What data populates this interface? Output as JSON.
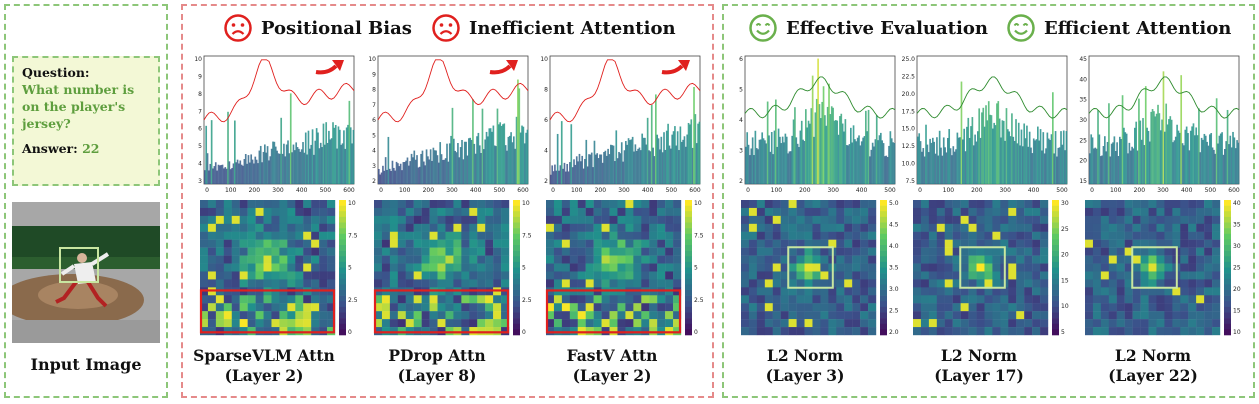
{
  "left": {
    "question_label": "Question:",
    "question_text": "What number is on the player's jersey?",
    "answer_label": "Answer:",
    "answer_value": "22",
    "image_caption": "Input Image"
  },
  "headers": [
    {
      "label": "Positional Bias",
      "icon": "sad-face-icon",
      "color": "#e0201e"
    },
    {
      "label": "Inefficient Attention",
      "icon": "sad-face-icon",
      "color": "#e0201e"
    },
    {
      "label": "Effective Evaluation",
      "icon": "happy-face-icon",
      "color": "#6ab04c"
    },
    {
      "label": "Efficient Attention",
      "icon": "happy-face-icon",
      "color": "#6ab04c"
    }
  ],
  "panels": [
    {
      "title": "SparseVLM Attn",
      "subtitle": "(Layer 2)",
      "y_ticks": [
        "3",
        "4",
        "5",
        "6",
        "7",
        "8",
        "9",
        "10"
      ],
      "x_ticks": [
        "0",
        "100",
        "200",
        "300",
        "400",
        "500",
        "600"
      ],
      "cb_ticks": [
        "0",
        "2.5",
        "5",
        "7.5",
        "10"
      ],
      "line_color": "#e0201e",
      "red_arrow": true,
      "highlight": "bottom"
    },
    {
      "title": "PDrop Attn",
      "subtitle": "(Layer 8)",
      "y_ticks": [
        "2",
        "3",
        "4",
        "5",
        "6",
        "7",
        "8",
        "9",
        "10"
      ],
      "x_ticks": [
        "0",
        "100",
        "200",
        "300",
        "400",
        "500",
        "600"
      ],
      "cb_ticks": [
        "0",
        "2.5",
        "5",
        "7.5",
        "10"
      ],
      "line_color": "#e0201e",
      "red_arrow": true,
      "highlight": "bottom"
    },
    {
      "title": "FastV Attn",
      "subtitle": "(Layer 2)",
      "y_ticks": [
        "2",
        "4",
        "6",
        "8",
        "10"
      ],
      "x_ticks": [
        "0",
        "100",
        "200",
        "300",
        "400",
        "500",
        "600"
      ],
      "cb_ticks": [
        "0",
        "2.5",
        "5",
        "7.5",
        "10"
      ],
      "line_color": "#e0201e",
      "red_arrow": true,
      "highlight": "bottom"
    },
    {
      "title": "L2 Norm",
      "subtitle": "(Layer 3)",
      "y_ticks": [
        "2",
        "3",
        "4",
        "5",
        "6"
      ],
      "x_ticks": [
        "0",
        "100",
        "200",
        "300",
        "400",
        "500"
      ],
      "cb_ticks": [
        "2.0",
        "2.5",
        "3.0",
        "3.5",
        "4.0",
        "4.5",
        "5.0"
      ],
      "line_color": "#2e8b2e",
      "red_arrow": false,
      "highlight": "center"
    },
    {
      "title": "L2 Norm",
      "subtitle": "(Layer 17)",
      "y_ticks": [
        "7.5",
        "10.0",
        "12.5",
        "15.0",
        "17.5",
        "20.0",
        "22.5",
        "25.0"
      ],
      "x_ticks": [
        "0",
        "100",
        "200",
        "300",
        "400",
        "500"
      ],
      "cb_ticks": [
        "5",
        "10",
        "15",
        "20",
        "25",
        "30"
      ],
      "line_color": "#2e8b2e",
      "red_arrow": false,
      "highlight": "center"
    },
    {
      "title": "L2 Norm",
      "subtitle": "(Layer 22)",
      "y_ticks": [
        "15",
        "20",
        "25",
        "30",
        "35",
        "40",
        "45"
      ],
      "x_ticks": [
        "0",
        "100",
        "200",
        "300",
        "400",
        "500",
        "600"
      ],
      "cb_ticks": [
        "10",
        "15",
        "20",
        "25",
        "30",
        "35",
        "40"
      ],
      "line_color": "#2e8b2e",
      "red_arrow": false,
      "highlight": "center"
    }
  ]
}
